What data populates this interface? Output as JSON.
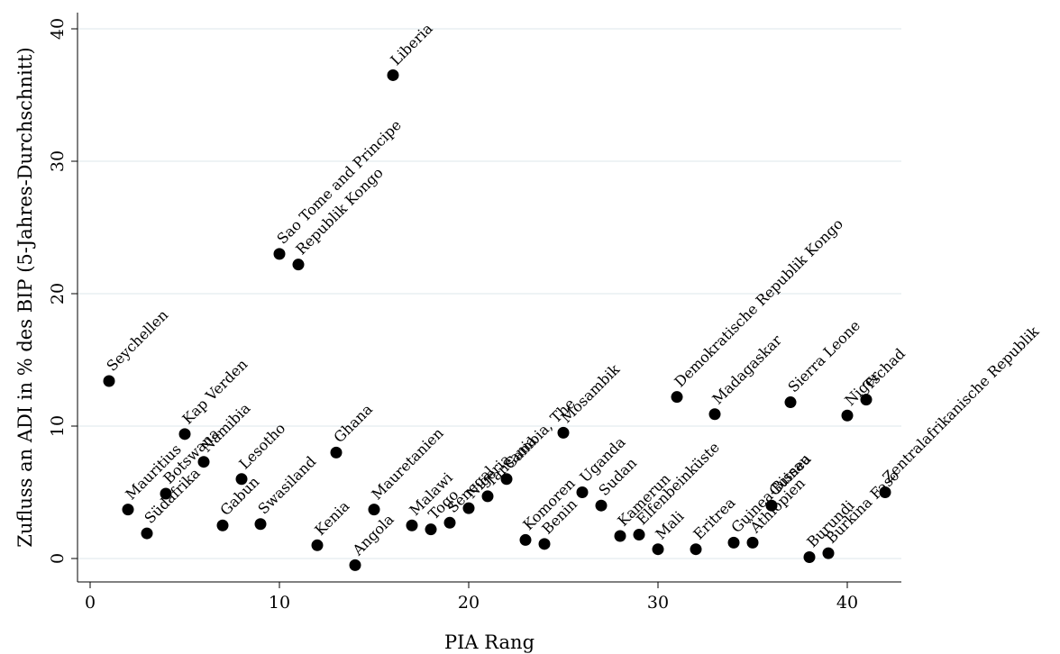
{
  "chart_data": {
    "type": "scatter",
    "xlabel": "PIA Rang",
    "ylabel": "Zufluss an ADI in % des BIP (5-Jahres-Durchschnitt)",
    "xlim": [
      -1,
      43
    ],
    "ylim": [
      -1,
      41
    ],
    "x_ticks": [
      0,
      10,
      20,
      30,
      40
    ],
    "y_ticks": [
      0,
      10,
      20,
      30,
      40
    ],
    "grid": "horizontal",
    "points": [
      {
        "label": "Seychellen",
        "x": 1,
        "y": 13.4
      },
      {
        "label": "Mauritius",
        "x": 2,
        "y": 3.7
      },
      {
        "label": "Südafrika",
        "x": 3,
        "y": 1.9
      },
      {
        "label": "Botswana",
        "x": 4,
        "y": 4.9
      },
      {
        "label": "Kap Verden",
        "x": 5,
        "y": 9.4
      },
      {
        "label": "Namibia",
        "x": 6,
        "y": 7.3
      },
      {
        "label": "Gabun",
        "x": 7,
        "y": 2.5
      },
      {
        "label": "Lesotho",
        "x": 8,
        "y": 6.0
      },
      {
        "label": "Swasiland",
        "x": 9,
        "y": 2.6
      },
      {
        "label": "Sao Tome and Principe",
        "x": 10,
        "y": 23.0
      },
      {
        "label": "Republik Kongo",
        "x": 11,
        "y": 22.2
      },
      {
        "label": "Kenia",
        "x": 12,
        "y": 1.0
      },
      {
        "label": "Ghana",
        "x": 13,
        "y": 8.0
      },
      {
        "label": "Angola",
        "x": 14,
        "y": -0.5
      },
      {
        "label": "Mauretanien",
        "x": 15,
        "y": 3.7
      },
      {
        "label": "Liberia",
        "x": 16,
        "y": 36.5
      },
      {
        "label": "Malawi",
        "x": 17,
        "y": 2.5
      },
      {
        "label": "Togo",
        "x": 18,
        "y": 2.2
      },
      {
        "label": "Senegal",
        "x": 19,
        "y": 2.7
      },
      {
        "label": "Nigeria",
        "x": 20,
        "y": 3.8
      },
      {
        "label": "Tansania",
        "x": 21,
        "y": 4.7
      },
      {
        "label": "Gambia, The",
        "x": 22,
        "y": 6.0
      },
      {
        "label": "Komoren",
        "x": 23,
        "y": 1.4
      },
      {
        "label": "Benin",
        "x": 24,
        "y": 1.1
      },
      {
        "label": "Mosambik",
        "x": 25,
        "y": 9.5
      },
      {
        "label": "Uganda",
        "x": 26,
        "y": 5.0
      },
      {
        "label": "Sudan",
        "x": 27,
        "y": 4.0
      },
      {
        "label": "Kamerun",
        "x": 28,
        "y": 1.7
      },
      {
        "label": "Elfenbeinküste",
        "x": 29,
        "y": 1.8
      },
      {
        "label": "Mali",
        "x": 30,
        "y": 0.7
      },
      {
        "label": "Demokratische Republik Kongo",
        "x": 31,
        "y": 12.2
      },
      {
        "label": "Eritrea",
        "x": 32,
        "y": 0.7
      },
      {
        "label": "Madagaskar",
        "x": 33,
        "y": 10.9
      },
      {
        "label": "Guinea-Bissau",
        "x": 34,
        "y": 1.2
      },
      {
        "label": "Äthiopien",
        "x": 35,
        "y": 1.2
      },
      {
        "label": "Guinea",
        "x": 36,
        "y": 4.0
      },
      {
        "label": "Sierra Leone",
        "x": 37,
        "y": 11.8
      },
      {
        "label": "Burundi",
        "x": 38,
        "y": 0.1
      },
      {
        "label": "Burkina Faso",
        "x": 39,
        "y": 0.4
      },
      {
        "label": "Niger",
        "x": 40,
        "y": 10.8
      },
      {
        "label": "Tschad",
        "x": 41,
        "y": 12.0
      },
      {
        "label": "Zentralafrikanische Republik",
        "x": 42,
        "y": 5.0
      }
    ]
  }
}
